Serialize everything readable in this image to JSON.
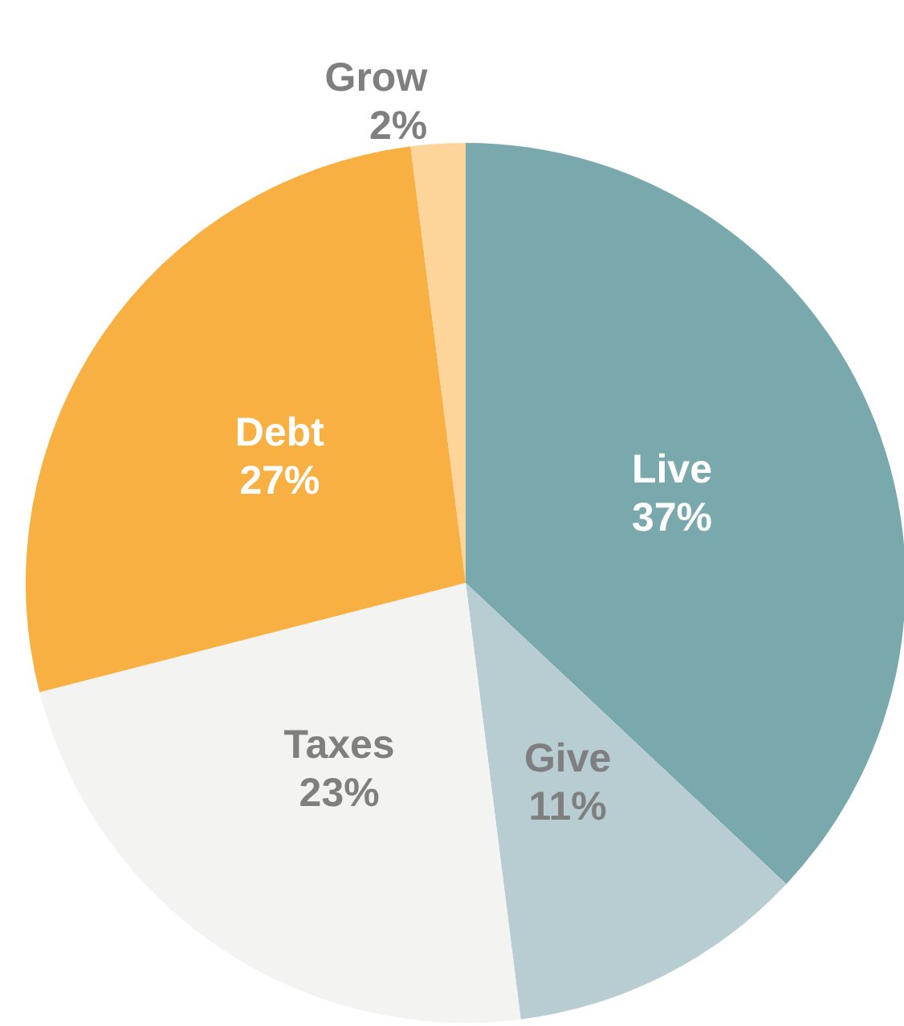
{
  "chart_data": {
    "type": "pie",
    "categories": [
      "Live",
      "Give",
      "Taxes",
      "Debt",
      "Grow"
    ],
    "values": [
      37,
      11,
      23,
      27,
      2
    ],
    "value_labels": [
      "37%",
      "11%",
      "23%",
      "27%",
      "2%"
    ],
    "colors": [
      "#79a9ad",
      "#b7cdd1",
      "#f3f3f1",
      "#f8b042",
      "#fdd49a"
    ],
    "legend": false
  }
}
